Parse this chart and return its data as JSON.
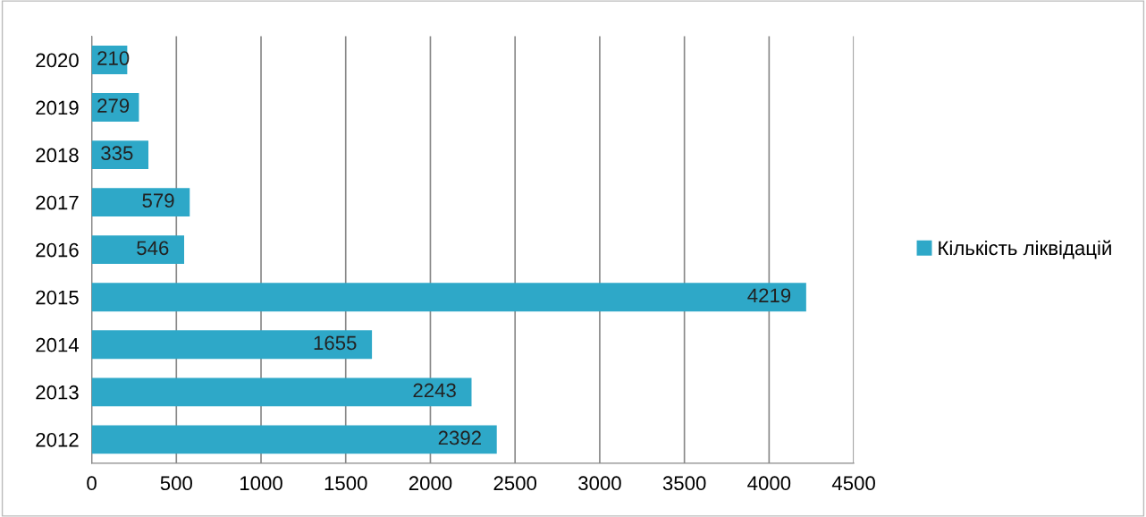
{
  "chart_data": {
    "type": "bar",
    "orientation": "horizontal",
    "categories": [
      "2020",
      "2019",
      "2018",
      "2017",
      "2016",
      "2015",
      "2014",
      "2013",
      "2012"
    ],
    "series": [
      {
        "name": "Кількість ліквідацій",
        "color": "#2ea8c8",
        "values": [
          210,
          279,
          335,
          579,
          546,
          4219,
          1655,
          2243,
          2392
        ]
      }
    ],
    "xlim": [
      0,
      4500
    ],
    "xticks": [
      0,
      500,
      1000,
      1500,
      2000,
      2500,
      3000,
      3500,
      4000,
      4500
    ],
    "grid": "x",
    "legend": "right",
    "data_labels": true
  }
}
